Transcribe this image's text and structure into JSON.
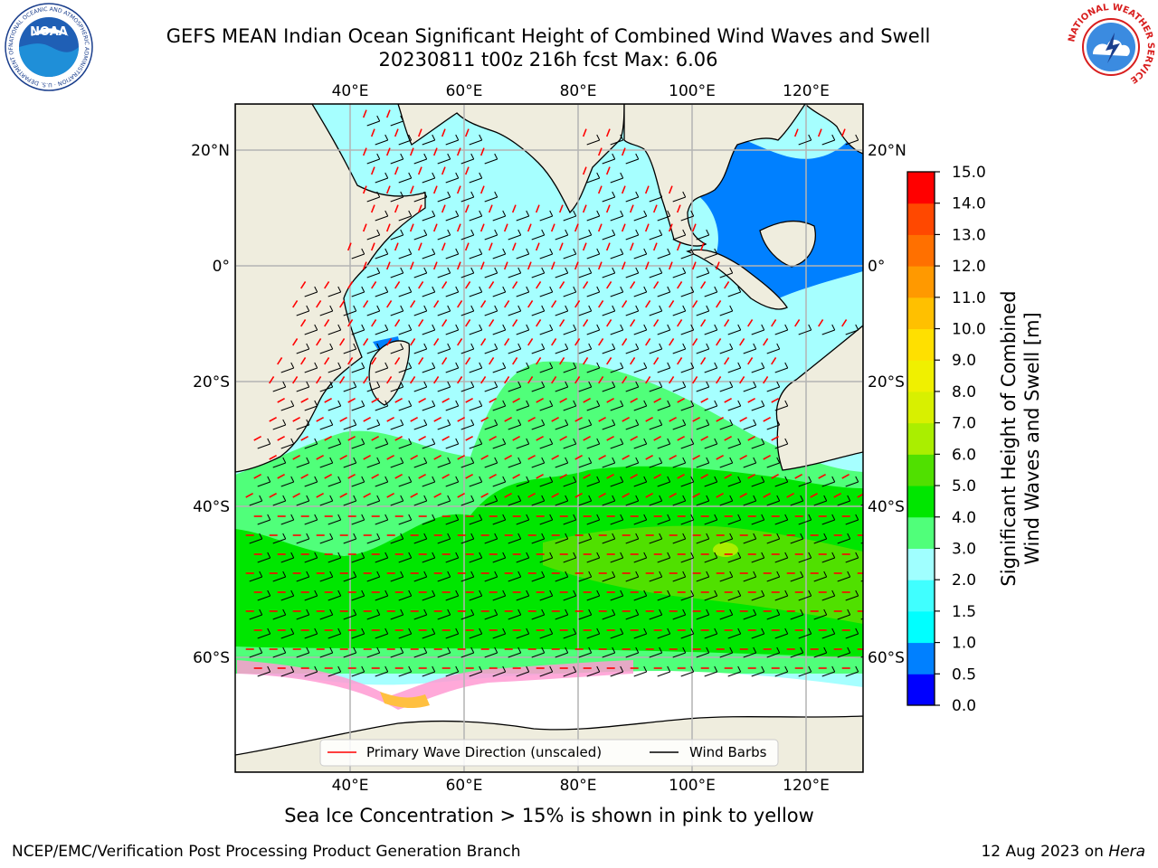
{
  "header": {
    "title": "GEFS MEAN Indian Ocean Significant Height of Combined Wind Waves and Swell",
    "subtitle": "20230811 t00z 216h fcst   Max: 6.06"
  },
  "logos": {
    "left": {
      "text": "NOAA",
      "ring_text": "NATIONAL OCEANIC AND ATMOSPHERIC ADMINISTRATION · U.S. DEPARTMENT OF COMMERCE"
    },
    "right": {
      "ring_text": "NATIONAL WEATHER SERVICE"
    }
  },
  "map": {
    "lon_ticks": [
      "40°E",
      "60°E",
      "80°E",
      "100°E",
      "120°E"
    ],
    "lat_ticks": [
      "20°N",
      "0°",
      "20°S",
      "40°S",
      "60°S"
    ],
    "legend": {
      "wave_direction": "Primary Wave Direction (unscaled)",
      "wind_barbs": "Wind Barbs"
    },
    "colors": {
      "land": "#efedde",
      "ice": "#ffffff",
      "wave_arrow": "#ff0000",
      "wind_barb": "#000000",
      "grid": "#b4b4b4"
    }
  },
  "colorbar": {
    "label_line1": "Significant Height of Combined",
    "label_line2": "Wind Waves and Swell [m]",
    "ticks": [
      "0.0",
      "0.5",
      "1.0",
      "1.5",
      "2.0",
      "3.0",
      "4.0",
      "5.0",
      "6.0",
      "7.0",
      "8.0",
      "9.0",
      "10.0",
      "11.0",
      "12.0",
      "13.0",
      "14.0",
      "15.0"
    ],
    "colors": [
      "#0000ff",
      "#0080ff",
      "#00ffff",
      "#40ffff",
      "#a0ffff",
      "#50ff7a",
      "#00e600",
      "#50e000",
      "#aaee00",
      "#d8f000",
      "#f0f000",
      "#ffe000",
      "#ffc000",
      "#ff9900",
      "#ff7000",
      "#ff4800",
      "#ff0000"
    ]
  },
  "footer": {
    "note": "Sea Ice Concentration > 15% is shown in pink to yellow",
    "left": "NCEP/EMC/Verification Post Processing Product Generation Branch",
    "right_date": "12 Aug 2023 on",
    "right_host": "Hera"
  }
}
